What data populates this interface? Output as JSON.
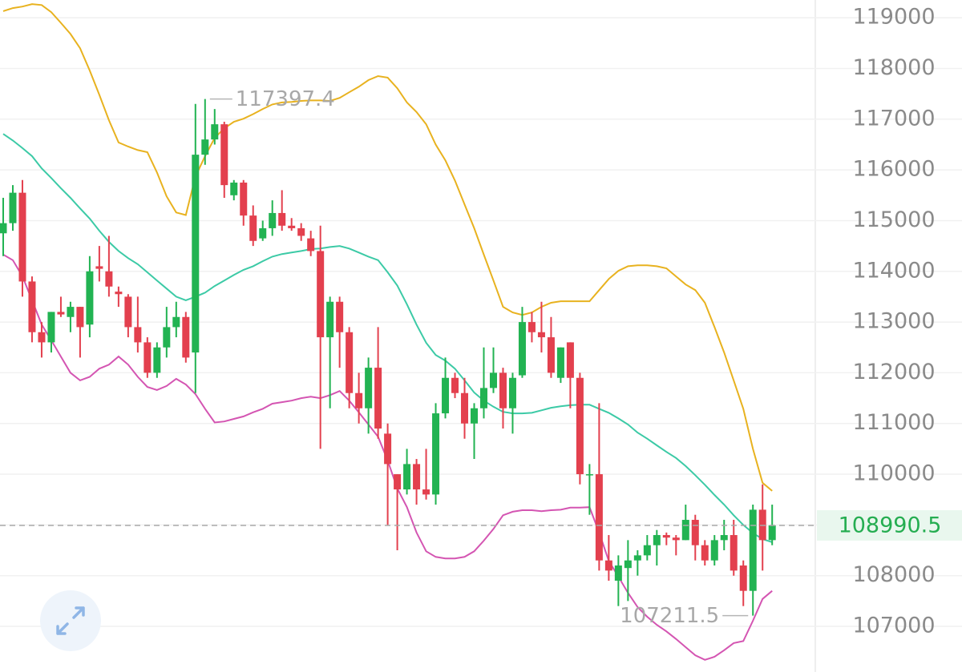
{
  "chart_data": {
    "type": "candlestick",
    "ylim": [
      106100,
      119350
    ],
    "yticks": [
      107000,
      108000,
      109000,
      110000,
      111000,
      112000,
      113000,
      114000,
      115000,
      116000,
      117000,
      118000,
      119000
    ],
    "grid": true,
    "up_color": "#22b352",
    "down_color": "#e3404e",
    "open": [
      114750,
      114950,
      115550,
      113800,
      112800,
      112600,
      113200,
      113100,
      113300,
      112950,
      114100,
      114000,
      113600,
      113500,
      112900,
      112600,
      112000,
      112500,
      112900,
      113100,
      112400,
      116300,
      116600,
      116900,
      115500,
      115750,
      115100,
      114650,
      114850,
      115150,
      114900,
      114850,
      114650,
      114400,
      112700,
      113400,
      112800,
      111600,
      111300,
      112100,
      110800,
      110000,
      109700,
      110200,
      109700,
      109600,
      111200,
      111900,
      111600,
      111000,
      111300,
      111700,
      112000,
      111300,
      111950,
      113000,
      112800,
      112700,
      111900,
      112600,
      111900,
      110000,
      110000,
      108300,
      107900,
      108150,
      108300,
      108400,
      108600,
      108800,
      108750,
      108700,
      109100,
      108600,
      108300,
      108700,
      108800,
      108200,
      107700,
      109300,
      108700
    ],
    "high": [
      115450,
      115700,
      115800,
      113900,
      113000,
      113200,
      113500,
      113400,
      113300,
      114300,
      114500,
      114700,
      113700,
      113550,
      113500,
      112700,
      112600,
      113300,
      113400,
      113200,
      117300,
      117397.4,
      117200,
      116950,
      115800,
      115800,
      115300,
      115000,
      115400,
      115600,
      115050,
      114950,
      114800,
      114900,
      113500,
      113500,
      112900,
      112000,
      112300,
      112900,
      111000,
      110000,
      110500,
      110300,
      110500,
      111400,
      112300,
      112000,
      111900,
      111400,
      112500,
      112500,
      112100,
      112000,
      113300,
      113200,
      113400,
      113100,
      112500,
      112600,
      112000,
      110200,
      111400,
      108800,
      108400,
      108700,
      108500,
      108800,
      108900,
      108850,
      108800,
      109400,
      109200,
      108700,
      108800,
      109100,
      109100,
      108300,
      109400,
      109800,
      109400
    ],
    "low": [
      114300,
      114800,
      113500,
      112600,
      112300,
      112400,
      113100,
      112800,
      112300,
      112700,
      113800,
      113500,
      113300,
      112700,
      112400,
      111900,
      111900,
      112300,
      112700,
      112200,
      111600,
      116100,
      116500,
      115450,
      115400,
      114900,
      114500,
      114600,
      114700,
      114800,
      114800,
      114600,
      114300,
      110500,
      111300,
      112100,
      111300,
      111000,
      110800,
      110700,
      109000,
      108500,
      109600,
      109400,
      109500,
      109400,
      111100,
      111500,
      110700,
      110300,
      111100,
      111600,
      110900,
      110800,
      111900,
      112600,
      112400,
      111900,
      111800,
      111300,
      109800,
      109200,
      108100,
      107900,
      107400,
      107500,
      108000,
      108300,
      108200,
      108600,
      108400,
      108700,
      108300,
      108200,
      108200,
      108500,
      108000,
      107400,
      107211.5,
      108100,
      108600
    ],
    "close": [
      114950,
      115550,
      113800,
      112800,
      112600,
      113200,
      113150,
      113300,
      112900,
      114000,
      114050,
      113700,
      113550,
      112900,
      112600,
      112000,
      112500,
      112900,
      113100,
      112300,
      116300,
      116600,
      116900,
      115700,
      115750,
      115100,
      114600,
      114850,
      115150,
      114900,
      114850,
      114700,
      114400,
      112700,
      113400,
      112800,
      111600,
      111300,
      112100,
      110900,
      110200,
      109700,
      110200,
      109700,
      109600,
      111200,
      111900,
      111600,
      111000,
      111300,
      111700,
      112000,
      111300,
      111900,
      113000,
      112800,
      112700,
      112000,
      112500,
      111900,
      110000,
      110000,
      108300,
      108100,
      108200,
      108300,
      108400,
      108600,
      108800,
      108750,
      108700,
      109100,
      108600,
      108300,
      108700,
      108800,
      108100,
      107700,
      109300,
      108700,
      108990.5
    ],
    "bollinger": {
      "upper": {
        "color": "#e8b21f",
        "values": [
          119130,
          119190,
          119220,
          119270,
          119250,
          119110,
          118900,
          118680,
          118400,
          117960,
          117480,
          116980,
          116540,
          116460,
          116390,
          116350,
          115950,
          115480,
          115160,
          115110,
          115870,
          116270,
          116630,
          116820,
          116950,
          117010,
          117100,
          117200,
          117290,
          117330,
          117340,
          117360,
          117370,
          117370,
          117360,
          117420,
          117530,
          117640,
          117770,
          117850,
          117820,
          117610,
          117330,
          117140,
          116900,
          116500,
          116190,
          115790,
          115320,
          114850,
          114330,
          113820,
          113300,
          113190,
          113140,
          113190,
          113300,
          113380,
          113410,
          113410,
          113410,
          113410,
          113630,
          113850,
          114010,
          114100,
          114120,
          114120,
          114100,
          114060,
          113900,
          113740,
          113630,
          113380,
          112900,
          112400,
          111850,
          111290,
          110500,
          109830,
          109670
        ]
      },
      "middle": {
        "color": "#3ccaa6",
        "values": [
          116710,
          116580,
          116430,
          116270,
          116030,
          115840,
          115640,
          115450,
          115240,
          115040,
          114800,
          114580,
          114400,
          114260,
          114140,
          113980,
          113820,
          113660,
          113500,
          113430,
          113500,
          113580,
          113710,
          113820,
          113930,
          114030,
          114100,
          114200,
          114290,
          114340,
          114370,
          114400,
          114440,
          114450,
          114480,
          114500,
          114450,
          114370,
          114290,
          114220,
          113980,
          113720,
          113350,
          112950,
          112590,
          112350,
          112240,
          112080,
          111850,
          111610,
          111450,
          111330,
          111230,
          111200,
          111200,
          111210,
          111260,
          111310,
          111340,
          111360,
          111370,
          111370,
          111290,
          111210,
          111100,
          110980,
          110820,
          110700,
          110570,
          110440,
          110320,
          110160,
          109980,
          109790,
          109590,
          109400,
          109190,
          109000,
          108840,
          108720,
          108660
        ]
      },
      "lower": {
        "color": "#d455b2",
        "values": [
          114330,
          114220,
          113900,
          113430,
          112950,
          112640,
          112320,
          112000,
          111850,
          111920,
          112080,
          112160,
          112320,
          112160,
          111920,
          111720,
          111660,
          111740,
          111880,
          111770,
          111580,
          111290,
          111020,
          111040,
          111090,
          111140,
          111220,
          111290,
          111390,
          111420,
          111450,
          111500,
          111530,
          111500,
          111560,
          111640,
          111450,
          111220,
          110980,
          110740,
          110270,
          109720,
          109350,
          108850,
          108480,
          108370,
          108340,
          108340,
          108370,
          108480,
          108690,
          108920,
          109190,
          109260,
          109290,
          109290,
          109270,
          109290,
          109300,
          109340,
          109340,
          109350,
          108850,
          108290,
          107980,
          107660,
          107380,
          107190,
          107030,
          106900,
          106750,
          106590,
          106430,
          106340,
          106400,
          106530,
          106670,
          106710,
          107110,
          107540,
          107700
        ]
      }
    }
  }
}
